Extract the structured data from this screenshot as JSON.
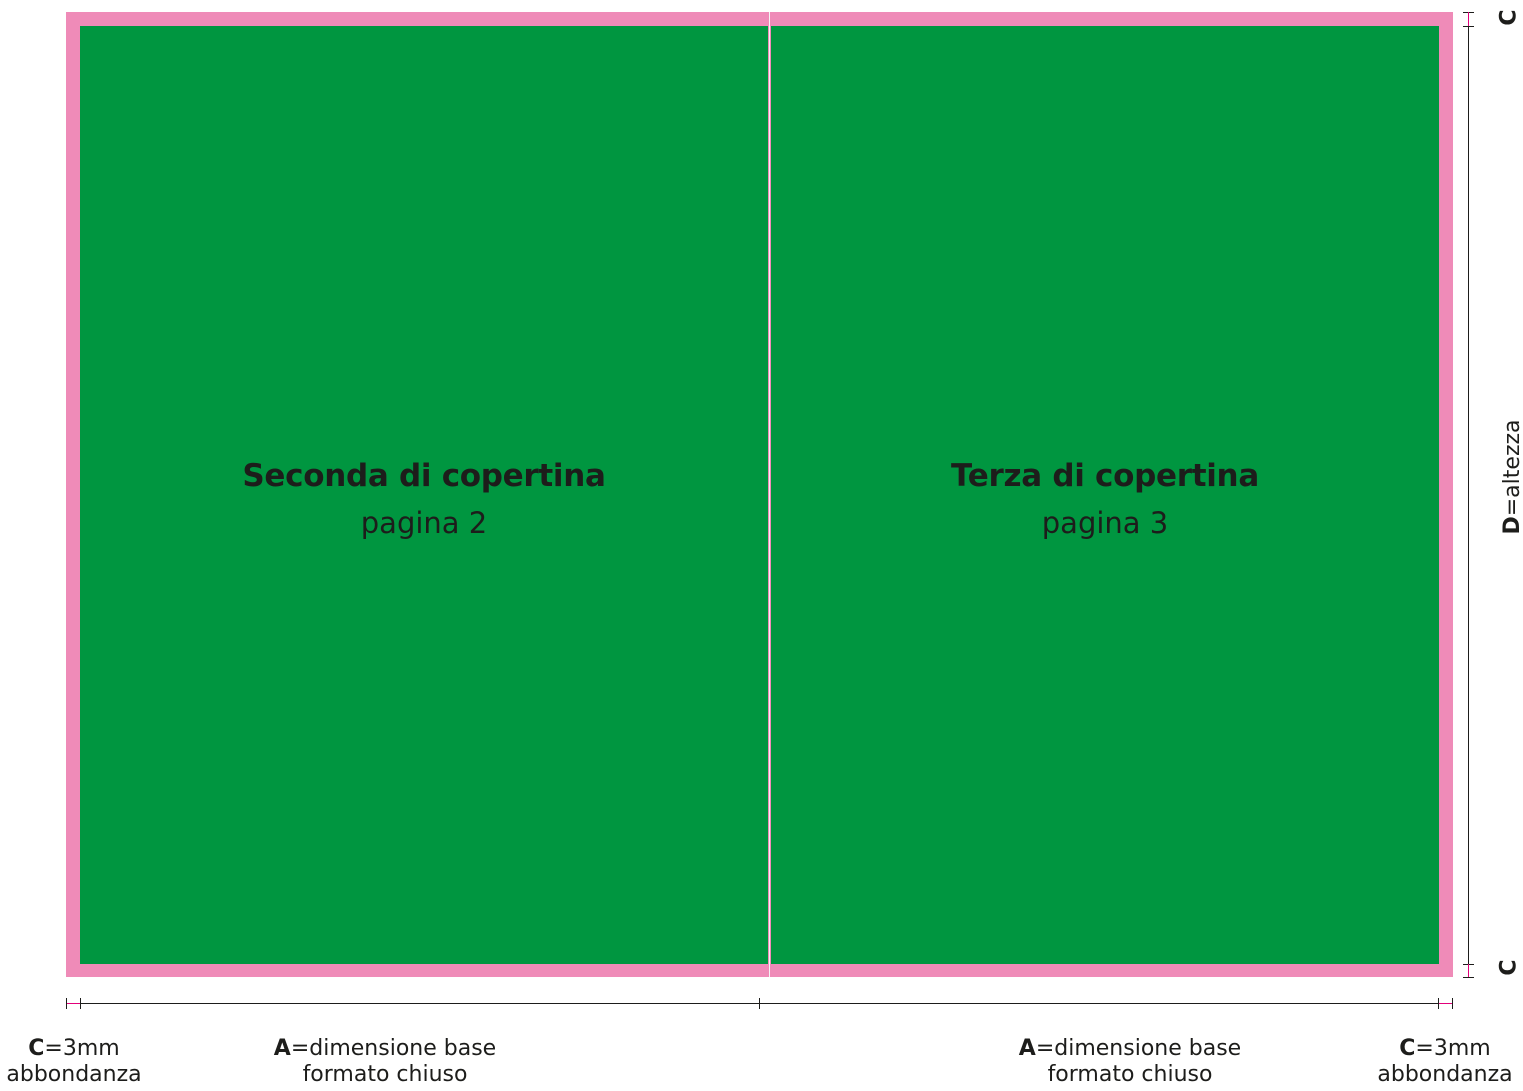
{
  "spread": {
    "left_page": {
      "title": "Seconda di copertina",
      "subtitle": "pagina 2"
    },
    "right_page": {
      "title": "Terza di copertina",
      "subtitle": "pagina 3"
    }
  },
  "dimensions": {
    "bleed_left": {
      "letter": "C",
      "value": "=3mm",
      "desc": "abbondanza"
    },
    "width_left": {
      "letter": "A",
      "value": "=dimensione base",
      "desc": "formato chiuso"
    },
    "width_right": {
      "letter": "A",
      "value": "=dimensione base",
      "desc": "formato chiuso"
    },
    "bleed_right": {
      "letter": "C",
      "value": "=3mm",
      "desc": "abbondanza"
    },
    "height": {
      "letter": "D",
      "value": "=altezza"
    },
    "bleed_top_letter": "C",
    "bleed_bottom_letter": "C"
  },
  "colors": {
    "page": "#009640",
    "bleed": "#ef8bb8",
    "text": "#1d1d1b"
  }
}
